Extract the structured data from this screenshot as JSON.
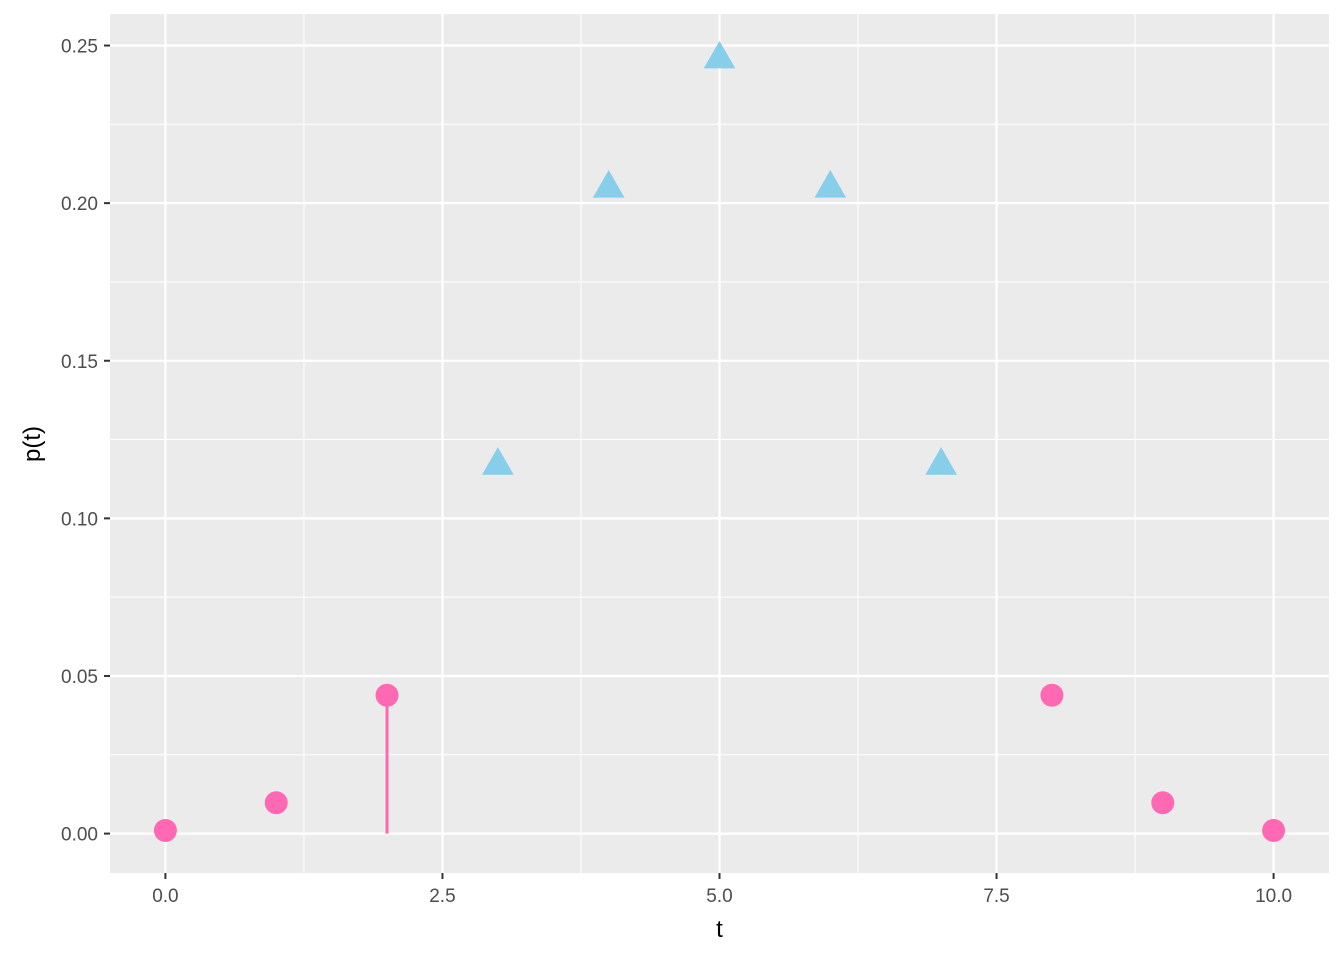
{
  "chart_data": {
    "type": "scatter",
    "title": "",
    "xlabel": "t",
    "ylabel": "p(t)",
    "xlim": [
      -0.5,
      10.5
    ],
    "ylim": [
      -0.0125,
      0.26
    ],
    "x_ticks": [
      0,
      2.5,
      5,
      7.5,
      10
    ],
    "x_tick_labels": [
      "0.0",
      "2.5",
      "5.0",
      "7.5",
      "10.0"
    ],
    "y_ticks": [
      0,
      0.05,
      0.1,
      0.15,
      0.2,
      0.25
    ],
    "y_tick_labels": [
      "0.00",
      "0.05",
      "0.10",
      "0.15",
      "0.20",
      "0.25"
    ],
    "grid": true,
    "legend": "none",
    "series": [
      {
        "marker": "circle",
        "color": "#ff69b4",
        "x": [
          0,
          1,
          2,
          8,
          9,
          10
        ],
        "y": [
          0.001,
          0.0098,
          0.0439,
          0.0439,
          0.0098,
          0.001
        ]
      },
      {
        "marker": "triangle",
        "color": "#87ceeb",
        "x": [
          3,
          4,
          5,
          6,
          7
        ],
        "y": [
          0.1172,
          0.2051,
          0.2461,
          0.2051,
          0.1172
        ]
      }
    ],
    "segments": [
      {
        "color": "#ff69b4",
        "x": 2,
        "y_from": 0,
        "y_to": 0.0439
      }
    ]
  }
}
